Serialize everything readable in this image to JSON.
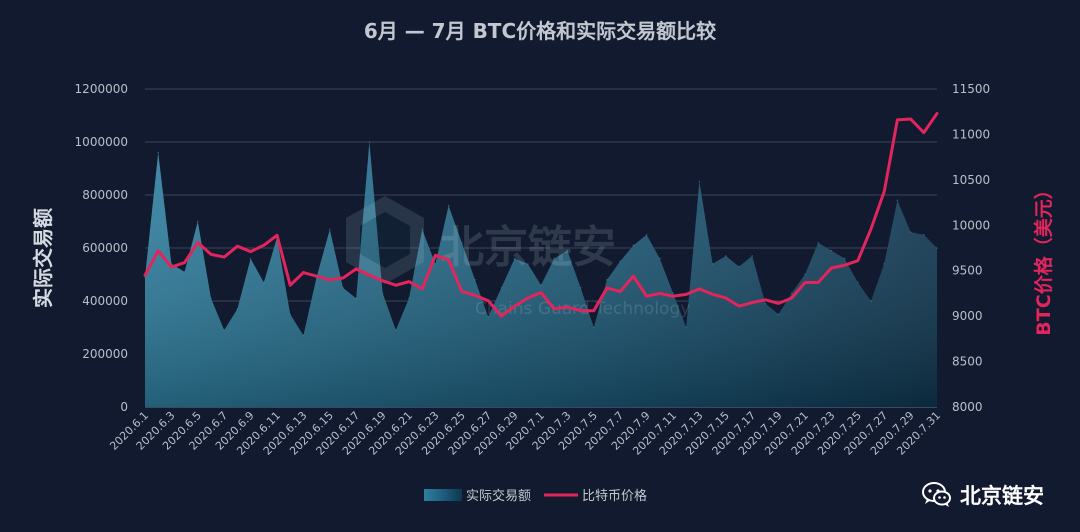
{
  "chart_data": {
    "type": "area+line",
    "title": "6月 — 7月 BTC价格和实际交易额比较",
    "ylabel_left": "实际交易额",
    "ylabel_right": "BTC价格（美元）",
    "ylim_left": [
      0,
      1200000
    ],
    "ylim_right": [
      8000,
      11500
    ],
    "yticks_left": [
      "0",
      "200000",
      "400000",
      "600000",
      "800000",
      "1000000",
      "1200000"
    ],
    "yticks_right": [
      "8000",
      "8500",
      "9000",
      "9500",
      "10000",
      "10500",
      "11000",
      "11500"
    ],
    "xtick_labels": [
      "2020.6.1",
      "2020.6.3",
      "2020.6.5",
      "2020.6.7",
      "2020.6.9",
      "2020.6.11",
      "2020.6.13",
      "2020.6.15",
      "2020.6.17",
      "2020.6.19",
      "2020.6.21",
      "2020.6.23",
      "2020.6.25",
      "2020.6.27",
      "2020.6.29",
      "2020.7.1",
      "2020.7.3",
      "2020.7.5",
      "2020.7.7",
      "2020.7.9",
      "2020.7.11",
      "2020.7.13",
      "2020.7.15",
      "2020.7.17",
      "2020.7.19",
      "2020.7.21",
      "2020.7.23",
      "2020.7.25",
      "2020.7.27",
      "2020.7.29",
      "2020.7.31"
    ],
    "x": [
      "2020.6.1",
      "2020.6.2",
      "2020.6.3",
      "2020.6.4",
      "2020.6.5",
      "2020.6.6",
      "2020.6.7",
      "2020.6.8",
      "2020.6.9",
      "2020.6.10",
      "2020.6.11",
      "2020.6.12",
      "2020.6.13",
      "2020.6.14",
      "2020.6.15",
      "2020.6.16",
      "2020.6.17",
      "2020.6.18",
      "2020.6.19",
      "2020.6.20",
      "2020.6.21",
      "2020.6.22",
      "2020.6.23",
      "2020.6.24",
      "2020.6.25",
      "2020.6.26",
      "2020.6.27",
      "2020.6.28",
      "2020.6.29",
      "2020.6.30",
      "2020.7.1",
      "2020.7.2",
      "2020.7.3",
      "2020.7.4",
      "2020.7.5",
      "2020.7.6",
      "2020.7.7",
      "2020.7.8",
      "2020.7.9",
      "2020.7.10",
      "2020.7.11",
      "2020.7.12",
      "2020.7.13",
      "2020.7.14",
      "2020.7.15",
      "2020.7.16",
      "2020.7.17",
      "2020.7.18",
      "2020.7.19",
      "2020.7.20",
      "2020.7.21",
      "2020.7.22",
      "2020.7.23",
      "2020.7.24",
      "2020.7.25",
      "2020.7.26",
      "2020.7.27",
      "2020.7.28",
      "2020.7.29",
      "2020.7.30",
      "2020.7.31"
    ],
    "series": [
      {
        "name": "实际交易额",
        "kind": "area",
        "axis": "left",
        "color": "#2b6f8f",
        "values": [
          490000,
          960000,
          540000,
          510000,
          700000,
          410000,
          290000,
          370000,
          560000,
          470000,
          640000,
          350000,
          270000,
          490000,
          670000,
          450000,
          410000,
          1000000,
          430000,
          290000,
          410000,
          670000,
          540000,
          760000,
          620000,
          480000,
          340000,
          450000,
          560000,
          540000,
          460000,
          560000,
          590000,
          450000,
          300000,
          480000,
          550000,
          610000,
          650000,
          560000,
          430000,
          300000,
          850000,
          540000,
          570000,
          530000,
          570000,
          390000,
          350000,
          430000,
          500000,
          620000,
          590000,
          560000,
          470000,
          400000,
          540000,
          780000,
          660000,
          650000,
          600000
        ]
      },
      {
        "name": "比特币价格",
        "kind": "line",
        "axis": "right",
        "color": "#e2255c",
        "values": [
          9450,
          9720,
          9540,
          9590,
          9810,
          9680,
          9650,
          9770,
          9710,
          9780,
          9890,
          9340,
          9480,
          9440,
          9400,
          9420,
          9520,
          9450,
          9390,
          9340,
          9380,
          9300,
          9670,
          9620,
          9270,
          9230,
          9170,
          9000,
          9110,
          9200,
          9260,
          9080,
          9100,
          9060,
          9060,
          9310,
          9270,
          9440,
          9220,
          9250,
          9220,
          9240,
          9300,
          9240,
          9200,
          9110,
          9150,
          9180,
          9140,
          9200,
          9370,
          9370,
          9530,
          9560,
          9610,
          9960,
          10370,
          11160,
          11170,
          11020,
          11230
        ]
      }
    ],
    "legend": {
      "position": "bottom",
      "entries": [
        "实际交易额",
        "比特币价格"
      ]
    },
    "grid": true
  },
  "watermark": {
    "cn": "北京链安",
    "en": "Chains Guard Technology"
  },
  "brand": {
    "name": "北京链安",
    "icon": "wechat-icon"
  }
}
